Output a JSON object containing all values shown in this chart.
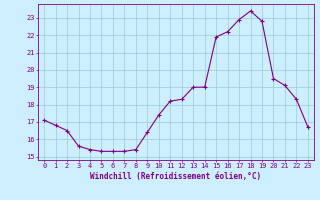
{
  "x": [
    0,
    1,
    2,
    3,
    4,
    5,
    6,
    7,
    8,
    9,
    10,
    11,
    12,
    13,
    14,
    15,
    16,
    17,
    18,
    19,
    20,
    21,
    22,
    23
  ],
  "y": [
    17.1,
    16.8,
    16.5,
    15.6,
    15.4,
    15.3,
    15.3,
    15.3,
    15.4,
    16.4,
    17.4,
    18.2,
    18.3,
    19.0,
    19.0,
    21.9,
    22.2,
    22.9,
    23.4,
    22.8,
    19.5,
    19.1,
    18.3,
    16.7
  ],
  "xlim": [
    -0.5,
    23.5
  ],
  "ylim": [
    14.8,
    23.8
  ],
  "yticks": [
    15,
    16,
    17,
    18,
    19,
    20,
    21,
    22,
    23
  ],
  "xticks": [
    0,
    1,
    2,
    3,
    4,
    5,
    6,
    7,
    8,
    9,
    10,
    11,
    12,
    13,
    14,
    15,
    16,
    17,
    18,
    19,
    20,
    21,
    22,
    23
  ],
  "line_color": "#800080",
  "marker": "+",
  "marker_size": 3.5,
  "linewidth": 0.8,
  "bg_color": "#cceeff",
  "grid_color": "#99cccc",
  "xlabel": "Windchill (Refroidissement éolien,°C)",
  "xlabel_color": "#800080",
  "tick_color": "#800080"
}
